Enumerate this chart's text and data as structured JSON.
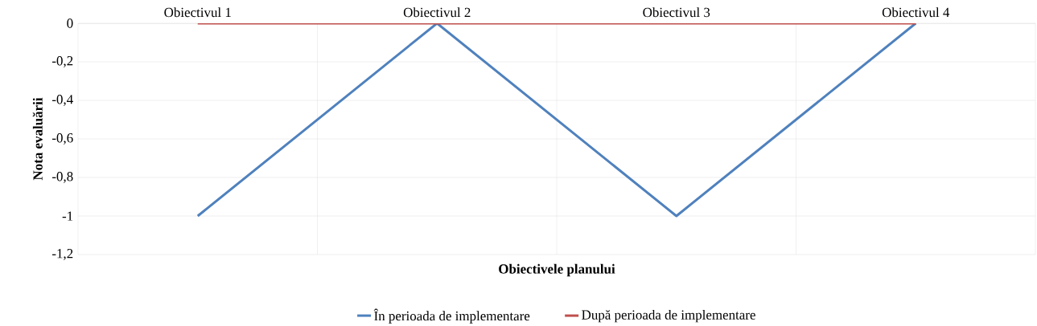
{
  "chart_data": {
    "type": "line",
    "xlabel": "Obiectivele planului",
    "ylabel": "Nota evaluării",
    "categories": [
      "Obiectivul 1",
      "Obiectivul 2",
      "Obiectivul 3",
      "Obiectivul 4"
    ],
    "series": [
      {
        "name": "În perioada de implementare",
        "color": "#4f81bd",
        "values": [
          -1,
          0,
          -1,
          0
        ]
      },
      {
        "name": "După perioada de implementare",
        "color": "#c0504d",
        "values": [
          0,
          0,
          0,
          0
        ]
      }
    ],
    "ylim": [
      -1.2,
      0
    ],
    "yticks": [
      {
        "value": 0,
        "label": "0"
      },
      {
        "value": -0.2,
        "label": "-0,2"
      },
      {
        "value": -0.4,
        "label": "-0,4"
      },
      {
        "value": -0.6,
        "label": "-0,6"
      },
      {
        "value": -0.8,
        "label": "-0,8"
      },
      {
        "value": -1,
        "label": "-1"
      },
      {
        "value": -1.2,
        "label": "-1,2"
      }
    ],
    "grid": true,
    "legend": "bottom",
    "marker": "none",
    "line_style": "solid"
  }
}
